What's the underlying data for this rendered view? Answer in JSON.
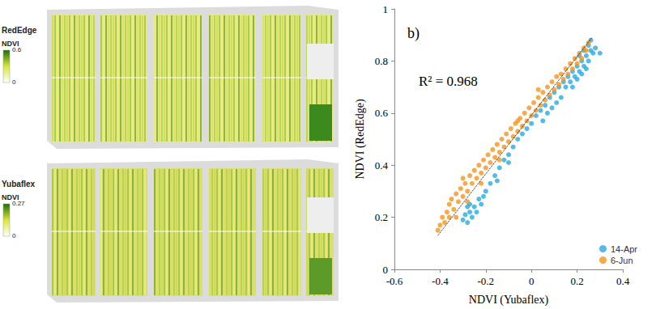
{
  "maps": [
    {
      "title": "RedEdge",
      "colorbar_label": "NDVI",
      "colorbar_ticks": [
        0,
        0.6
      ]
    },
    {
      "title": "Yubaflex",
      "colorbar_label": "NDVI",
      "colorbar_ticks": [
        0,
        0.27
      ]
    }
  ],
  "chart_data": {
    "type": "scatter",
    "panel_label": "b)",
    "annotation": "R² = 0.968",
    "x_label": "NDVI (Yubaflex)",
    "y_label": "NDVI (RedEdge)",
    "xlim": [
      -0.6,
      0.4
    ],
    "xticks": [
      -0.6,
      -0.4,
      -0.2,
      0,
      0.2,
      0.4
    ],
    "ylim": [
      0,
      1
    ],
    "yticks": [
      0,
      0.2,
      0.4,
      0.6,
      0.8,
      1
    ],
    "grid": false,
    "legend": "lower right",
    "series": [
      {
        "name": "14-Apr",
        "color": "#29aae1",
        "marker": "circle",
        "values": [
          [
            -0.3,
            0.19
          ],
          [
            -0.29,
            0.21
          ],
          [
            -0.28,
            0.18
          ],
          [
            -0.27,
            0.22
          ],
          [
            -0.26,
            0.2
          ],
          [
            -0.25,
            0.24
          ],
          [
            -0.24,
            0.22
          ],
          [
            -0.27,
            0.25
          ],
          [
            -0.23,
            0.27
          ],
          [
            -0.22,
            0.25
          ],
          [
            -0.2,
            0.3
          ],
          [
            -0.18,
            0.33
          ],
          [
            -0.16,
            0.36
          ],
          [
            -0.14,
            0.39
          ],
          [
            -0.12,
            0.42
          ],
          [
            -0.1,
            0.44
          ],
          [
            -0.08,
            0.47
          ],
          [
            -0.06,
            0.5
          ],
          [
            -0.04,
            0.52
          ],
          [
            -0.02,
            0.54
          ],
          [
            0.0,
            0.56
          ],
          [
            0.02,
            0.59
          ],
          [
            0.04,
            0.61
          ],
          [
            0.06,
            0.63
          ],
          [
            0.08,
            0.66
          ],
          [
            0.1,
            0.68
          ],
          [
            0.12,
            0.7
          ],
          [
            0.14,
            0.72
          ],
          [
            0.15,
            0.7
          ],
          [
            0.16,
            0.74
          ],
          [
            0.17,
            0.72
          ],
          [
            0.18,
            0.76
          ],
          [
            0.19,
            0.74
          ],
          [
            0.2,
            0.78
          ],
          [
            0.21,
            0.76
          ],
          [
            0.22,
            0.8
          ],
          [
            0.23,
            0.78
          ],
          [
            0.24,
            0.82
          ],
          [
            0.25,
            0.8
          ],
          [
            0.26,
            0.84
          ],
          [
            0.27,
            0.83
          ],
          [
            0.28,
            0.85
          ],
          [
            0.25,
            0.86
          ],
          [
            0.23,
            0.84
          ],
          [
            0.22,
            0.75
          ],
          [
            0.2,
            0.73
          ],
          [
            0.18,
            0.7
          ],
          [
            0.24,
            0.77
          ],
          [
            0.3,
            0.83
          ],
          [
            0.21,
            0.82
          ],
          [
            0.26,
            0.88
          ],
          [
            0.13,
            0.66
          ],
          [
            0.11,
            0.64
          ],
          [
            0.09,
            0.62
          ],
          [
            0.07,
            0.6
          ],
          [
            0.05,
            0.57
          ],
          [
            -0.1,
            0.41
          ],
          [
            -0.15,
            0.34
          ],
          [
            -0.21,
            0.28
          ],
          [
            -0.28,
            0.24
          ]
        ]
      },
      {
        "name": "6-Jun",
        "color": "#f7941d",
        "marker": "circle",
        "values": [
          [
            -0.41,
            0.15
          ],
          [
            -0.4,
            0.17
          ],
          [
            -0.39,
            0.2
          ],
          [
            -0.38,
            0.18
          ],
          [
            -0.37,
            0.22
          ],
          [
            -0.36,
            0.25
          ],
          [
            -0.36,
            0.2
          ],
          [
            -0.35,
            0.27
          ],
          [
            -0.34,
            0.23
          ],
          [
            -0.33,
            0.29
          ],
          [
            -0.32,
            0.26
          ],
          [
            -0.31,
            0.31
          ],
          [
            -0.3,
            0.28
          ],
          [
            -0.3,
            0.35
          ],
          [
            -0.29,
            0.33
          ],
          [
            -0.28,
            0.3
          ],
          [
            -0.27,
            0.36
          ],
          [
            -0.26,
            0.33
          ],
          [
            -0.25,
            0.38
          ],
          [
            -0.24,
            0.35
          ],
          [
            -0.23,
            0.4
          ],
          [
            -0.22,
            0.37
          ],
          [
            -0.21,
            0.42
          ],
          [
            -0.2,
            0.39
          ],
          [
            -0.19,
            0.44
          ],
          [
            -0.18,
            0.41
          ],
          [
            -0.17,
            0.46
          ],
          [
            -0.16,
            0.43
          ],
          [
            -0.15,
            0.48
          ],
          [
            -0.14,
            0.45
          ],
          [
            -0.13,
            0.5
          ],
          [
            -0.12,
            0.47
          ],
          [
            -0.11,
            0.52
          ],
          [
            -0.1,
            0.49
          ],
          [
            -0.09,
            0.54
          ],
          [
            -0.08,
            0.51
          ],
          [
            -0.07,
            0.56
          ],
          [
            -0.06,
            0.53
          ],
          [
            -0.05,
            0.58
          ],
          [
            -0.04,
            0.55
          ],
          [
            -0.03,
            0.6
          ],
          [
            -0.02,
            0.57
          ],
          [
            -0.01,
            0.62
          ],
          [
            0.0,
            0.59
          ],
          [
            0.01,
            0.64
          ],
          [
            0.02,
            0.61
          ],
          [
            0.03,
            0.66
          ],
          [
            0.04,
            0.63
          ],
          [
            0.05,
            0.68
          ],
          [
            0.06,
            0.65
          ],
          [
            0.07,
            0.7
          ],
          [
            0.08,
            0.67
          ],
          [
            0.09,
            0.72
          ],
          [
            0.1,
            0.69
          ],
          [
            0.11,
            0.74
          ],
          [
            0.12,
            0.71
          ],
          [
            0.13,
            0.75
          ],
          [
            0.14,
            0.73
          ],
          [
            0.15,
            0.77
          ],
          [
            0.16,
            0.75
          ],
          [
            0.17,
            0.79
          ],
          [
            0.18,
            0.77
          ],
          [
            0.19,
            0.81
          ],
          [
            0.2,
            0.79
          ],
          [
            0.21,
            0.83
          ],
          [
            0.22,
            0.81
          ],
          [
            0.23,
            0.85
          ],
          [
            0.24,
            0.84
          ],
          [
            0.25,
            0.87
          ],
          [
            -0.33,
            0.2
          ],
          [
            -0.28,
            0.26
          ],
          [
            -0.22,
            0.33
          ],
          [
            -0.14,
            0.42
          ],
          [
            -0.06,
            0.57
          ],
          [
            0.03,
            0.69
          ]
        ]
      }
    ],
    "trendline": {
      "x": [
        -0.41,
        0.265
      ],
      "y": [
        0.13,
        0.89
      ],
      "color": "#000000",
      "line_style": "dotted"
    }
  }
}
